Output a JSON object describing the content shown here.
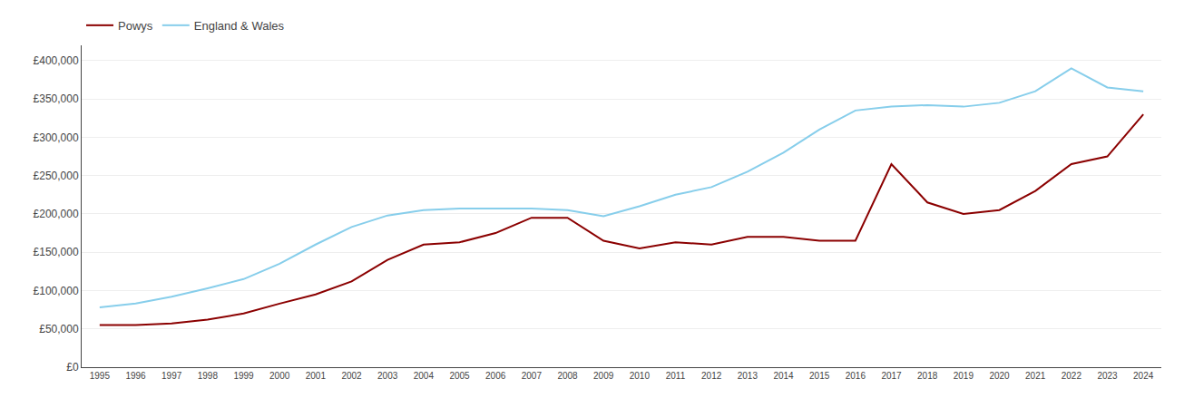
{
  "chart_data": {
    "type": "line",
    "x": [
      1995,
      1996,
      1997,
      1998,
      1999,
      2000,
      2001,
      2002,
      2003,
      2004,
      2005,
      2006,
      2007,
      2008,
      2009,
      2010,
      2011,
      2012,
      2013,
      2014,
      2015,
      2016,
      2017,
      2018,
      2019,
      2020,
      2021,
      2022,
      2023,
      2024
    ],
    "series": [
      {
        "name": "Powys",
        "color": "#8B0000",
        "values": [
          55000,
          55000,
          57000,
          62000,
          70000,
          83000,
          95000,
          112000,
          140000,
          160000,
          163000,
          175000,
          195000,
          195000,
          165000,
          155000,
          163000,
          160000,
          170000,
          170000,
          165000,
          165000,
          265000,
          215000,
          200000,
          205000,
          230000,
          265000,
          275000,
          330000
        ]
      },
      {
        "name": "England & Wales",
        "color": "#87CEEB",
        "values": [
          78000,
          83000,
          92000,
          103000,
          115000,
          135000,
          160000,
          183000,
          198000,
          205000,
          207000,
          207000,
          207000,
          205000,
          197000,
          210000,
          225000,
          235000,
          255000,
          280000,
          310000,
          335000,
          340000,
          342000,
          340000,
          345000,
          360000,
          390000,
          365000,
          360000
        ]
      }
    ],
    "xlim": [
      1994.5,
      2024.5
    ],
    "xticks": [
      1995,
      1996,
      1997,
      1998,
      1999,
      2000,
      2001,
      2002,
      2003,
      2004,
      2005,
      2006,
      2007,
      2008,
      2009,
      2010,
      2011,
      2012,
      2013,
      2014,
      2015,
      2016,
      2017,
      2018,
      2019,
      2020,
      2021,
      2022,
      2023,
      2024
    ],
    "ylim": [
      0,
      420000
    ],
    "yticks": [
      {
        "value": 0,
        "label": "£0"
      },
      {
        "value": 50000,
        "label": "£50,000"
      },
      {
        "value": 100000,
        "label": "£100,000"
      },
      {
        "value": 150000,
        "label": "£150,000"
      },
      {
        "value": 200000,
        "label": "£200,000"
      },
      {
        "value": 250000,
        "label": "£250,000"
      },
      {
        "value": 300000,
        "label": "£300,000"
      },
      {
        "value": 350000,
        "label": "£350,000"
      },
      {
        "value": 400000,
        "label": "£400,000"
      }
    ],
    "grid": "y",
    "legend": "upper left"
  }
}
